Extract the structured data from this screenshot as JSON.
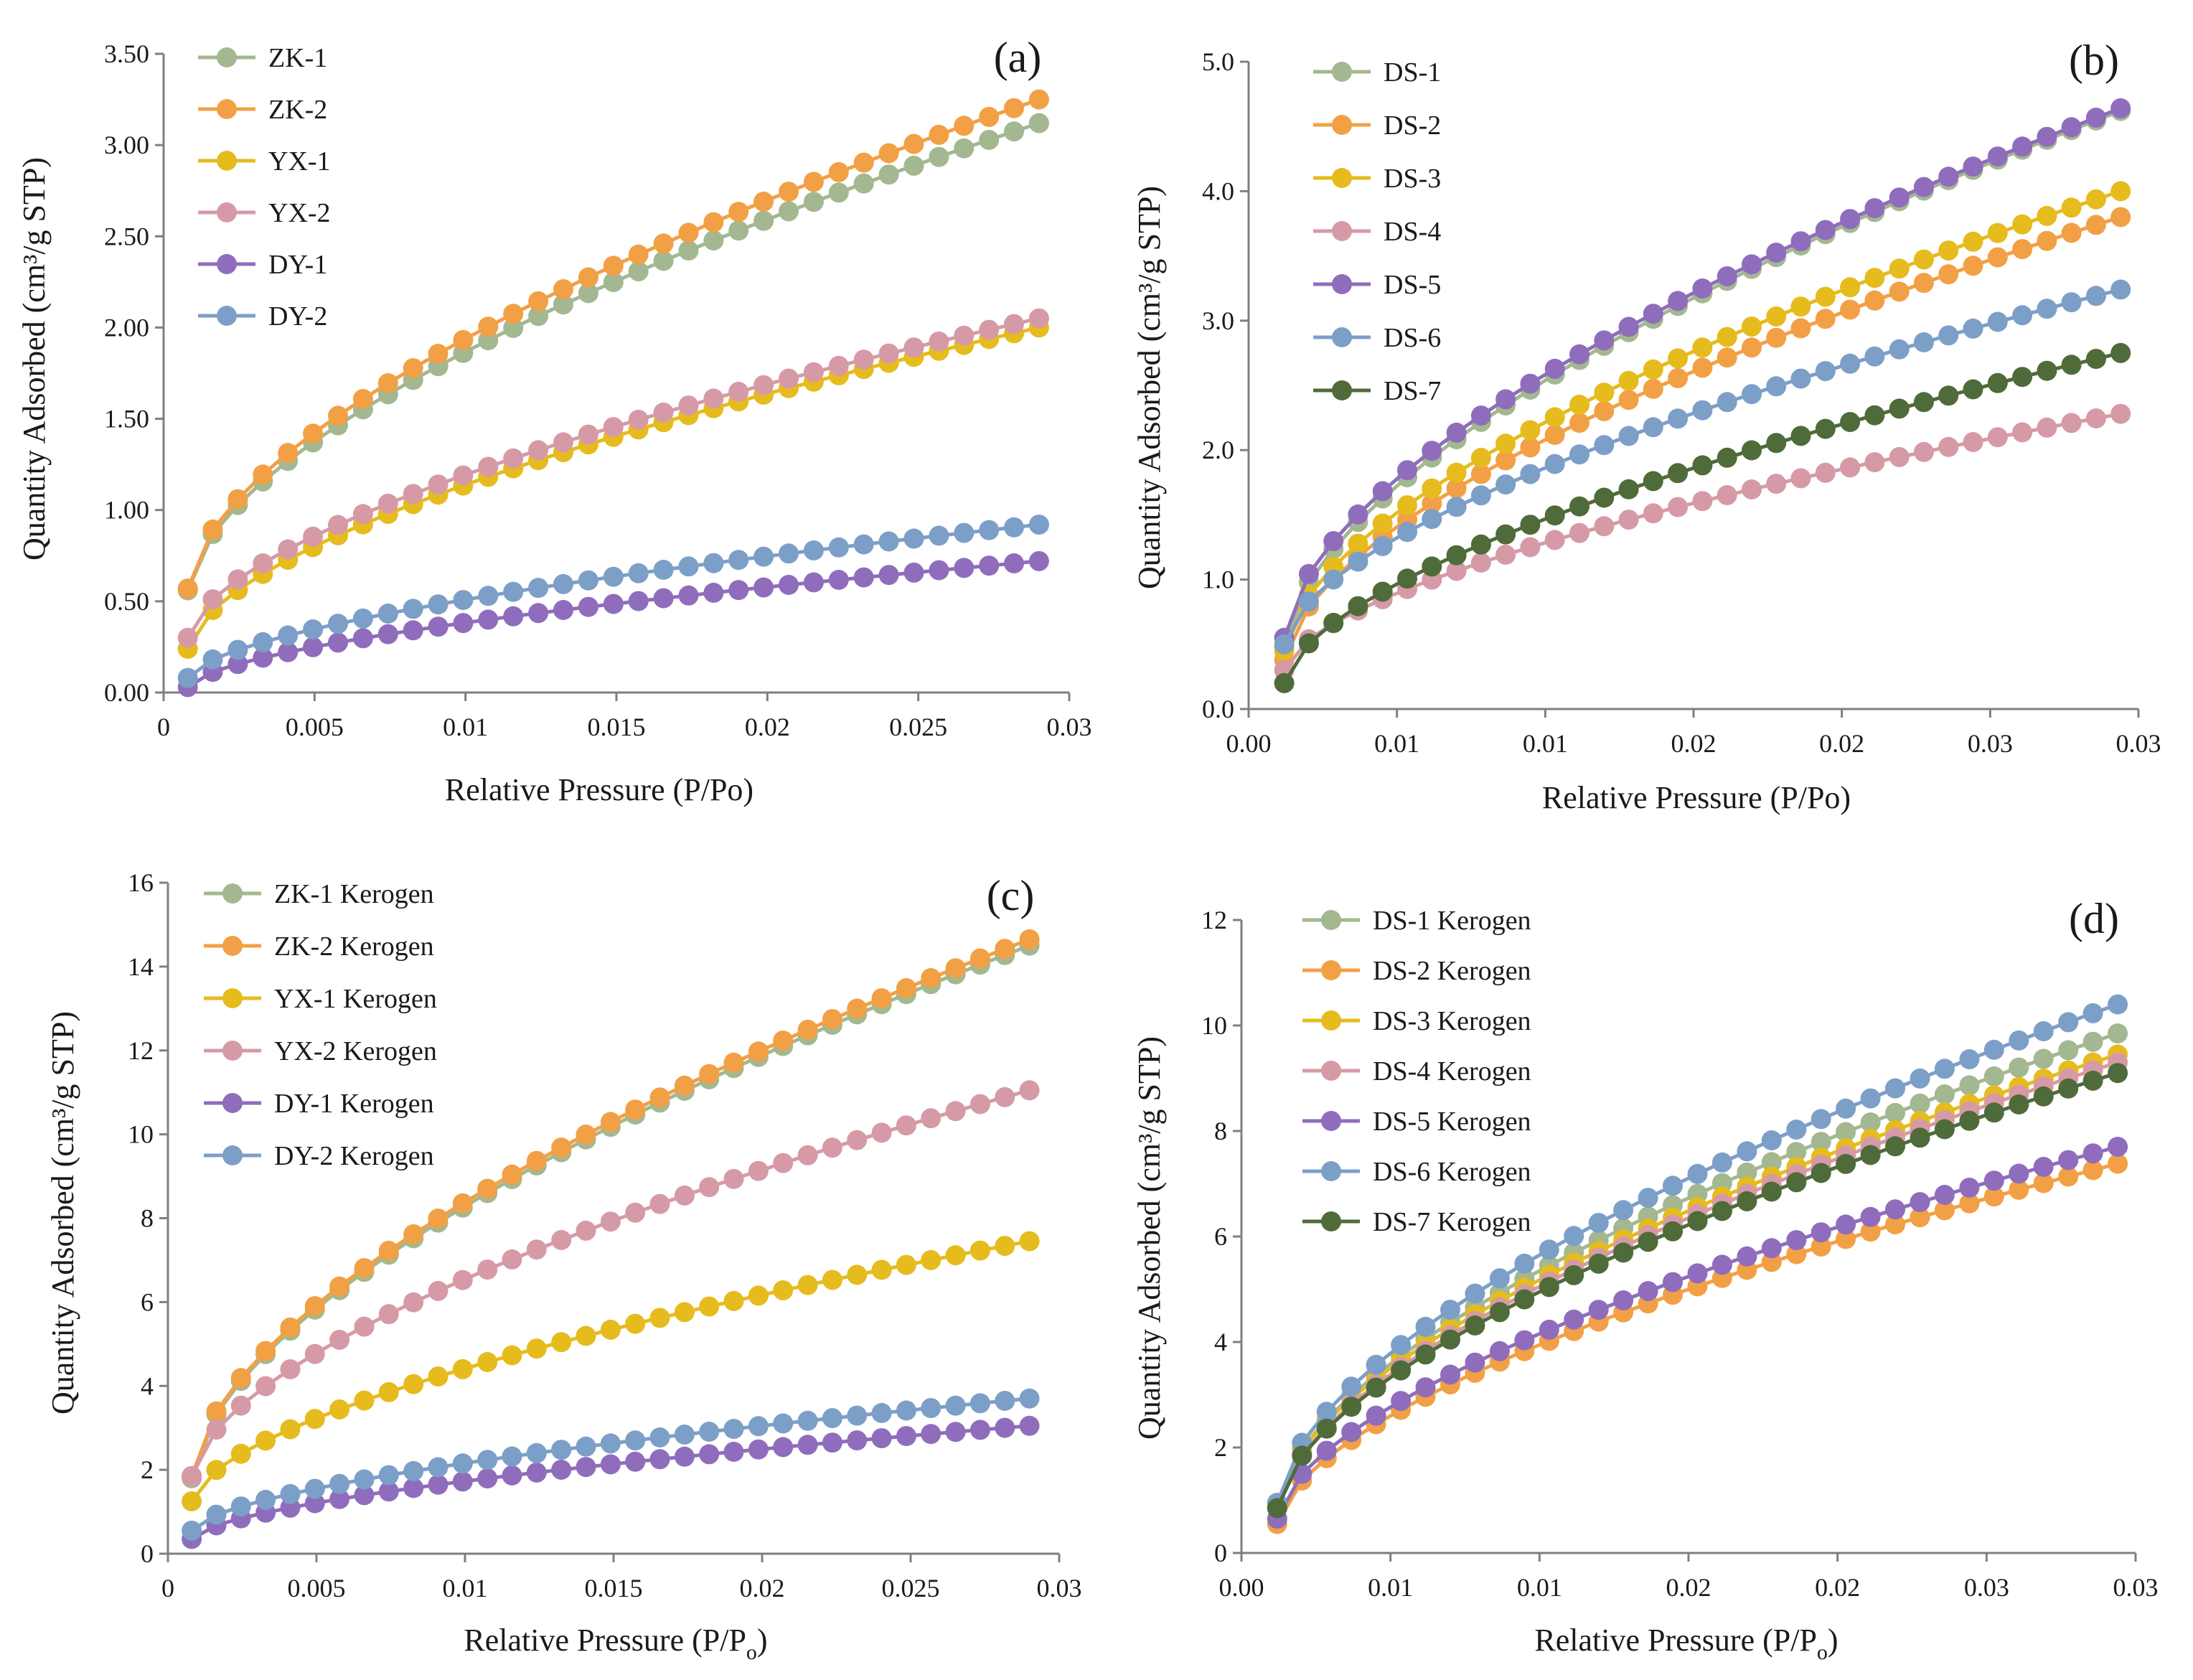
{
  "colors": {
    "green": "#a3b890",
    "orange": "#f2a045",
    "yellow": "#e6bb1e",
    "pink": "#d69aa6",
    "purple": "#8f6dbc",
    "blue": "#7c9fc8",
    "darkgreen": "#4f6b3a",
    "axis": "#7f7f7f"
  },
  "chart_data": [
    {
      "id": "a",
      "type": "line",
      "panel_label": "(a)",
      "xlabel": "Relative Pressure (P/Po)",
      "ylabel": "Quantity Adsorbed (cm³/g STP)",
      "xlim": [
        0,
        0.03
      ],
      "ylim": [
        0,
        3.5
      ],
      "x_tick_labels": [
        "0",
        "0.005",
        "0.01",
        "0.015",
        "0.02",
        "0.025",
        "0.03"
      ],
      "y_tick_labels": [
        "0.00",
        "0.50",
        "1.00",
        "1.50",
        "2.00",
        "2.50",
        "3.00",
        "3.50"
      ],
      "x_start": 0.0008,
      "x_end": 0.029,
      "points": 35,
      "series": [
        {
          "name": "ZK-1",
          "color_key": "green",
          "y0": 0.56,
          "y1": 3.12
        },
        {
          "name": "ZK-2",
          "color_key": "orange",
          "y0": 0.57,
          "y1": 3.25
        },
        {
          "name": "YX-1",
          "color_key": "yellow",
          "y0": 0.24,
          "y1": 2.0
        },
        {
          "name": "YX-2",
          "color_key": "pink",
          "y0": 0.3,
          "y1": 2.05
        },
        {
          "name": "DY-1",
          "color_key": "purple",
          "y0": 0.03,
          "y1": 0.72
        },
        {
          "name": "DY-2",
          "color_key": "blue",
          "y0": 0.08,
          "y1": 0.92
        }
      ]
    },
    {
      "id": "b",
      "type": "line",
      "panel_label": "(b)",
      "xlabel": "Relative Pressure (P/Po)",
      "ylabel": "Quantity Adsorbed (cm³/g STP)",
      "xlim": [
        0,
        0.03
      ],
      "ylim": [
        0,
        5.0
      ],
      "x_tick_labels": [
        "0.00",
        "0.01",
        "0.01",
        "0.02",
        "0.02",
        "0.03",
        "0.03"
      ],
      "y_tick_labels": [
        "0.0",
        "1.0",
        "2.0",
        "3.0",
        "4.0",
        "5.0"
      ],
      "x_start": 0.0012,
      "x_end": 0.0294,
      "points": 35,
      "series": [
        {
          "name": "DS-1",
          "color_key": "green",
          "y0": 0.48,
          "y1": 4.62
        },
        {
          "name": "DS-2",
          "color_key": "orange",
          "y0": 0.38,
          "y1": 3.8
        },
        {
          "name": "DS-3",
          "color_key": "yellow",
          "y0": 0.45,
          "y1": 4.0
        },
        {
          "name": "DS-4",
          "color_key": "pink",
          "y0": 0.3,
          "y1": 2.28
        },
        {
          "name": "DS-5",
          "color_key": "purple",
          "y0": 0.55,
          "y1": 4.64
        },
        {
          "name": "DS-6",
          "color_key": "blue",
          "y0": 0.5,
          "y1": 3.24
        },
        {
          "name": "DS-7",
          "color_key": "darkgreen",
          "y0": 0.2,
          "y1": 2.75
        }
      ]
    },
    {
      "id": "c",
      "type": "line",
      "panel_label": "(c)",
      "xlabel": "Relative Pressure (P/P",
      "xlabel_sub": "o",
      "xlabel_end": ")",
      "ylabel": "Quantity Adsorbed (cm³/g STP)",
      "xlim": [
        0,
        0.03
      ],
      "ylim": [
        0,
        16
      ],
      "x_tick_labels": [
        "0",
        "0.005",
        "0.01",
        "0.015",
        "0.02",
        "0.025",
        "0.03"
      ],
      "y_tick_labels": [
        "0",
        "2",
        "4",
        "6",
        "8",
        "10",
        "12",
        "14",
        "16"
      ],
      "x_start": 0.0008,
      "x_end": 0.029,
      "points": 35,
      "series": [
        {
          "name": "ZK-1 Kerogen",
          "color_key": "green",
          "y0": 1.8,
          "y1": 14.5
        },
        {
          "name": "ZK-2 Kerogen",
          "color_key": "orange",
          "y0": 1.85,
          "y1": 14.65
        },
        {
          "name": "YX-1 Kerogen",
          "color_key": "yellow",
          "y0": 1.25,
          "y1": 7.45
        },
        {
          "name": "YX-2 Kerogen",
          "color_key": "pink",
          "y0": 1.85,
          "y1": 11.05
        },
        {
          "name": "DY-1 Kerogen",
          "color_key": "purple",
          "y0": 0.35,
          "y1": 3.05
        },
        {
          "name": "DY-2 Kerogen",
          "color_key": "blue",
          "y0": 0.55,
          "y1": 3.7
        }
      ]
    },
    {
      "id": "d",
      "type": "line",
      "panel_label": "(d)",
      "xlabel": "Relative Pressure (P/P",
      "xlabel_sub": "o",
      "xlabel_end": ")",
      "ylabel": "Quantity Adsorbed (cm³/g STP)",
      "xlim": [
        0,
        0.03
      ],
      "ylim": [
        0,
        12
      ],
      "x_tick_labels": [
        "0.00",
        "0.01",
        "0.01",
        "0.02",
        "0.02",
        "0.03",
        "0.03"
      ],
      "y_tick_labels": [
        "0",
        "2",
        "4",
        "6",
        "8",
        "10",
        "12"
      ],
      "x_start": 0.0012,
      "x_end": 0.0294,
      "points": 35,
      "series": [
        {
          "name": "DS-1  Kerogen",
          "color_key": "green",
          "y0": 0.9,
          "y1": 9.85
        },
        {
          "name": "DS-2  Kerogen",
          "color_key": "orange",
          "y0": 0.55,
          "y1": 7.38
        },
        {
          "name": "DS-3  Kerogen",
          "color_key": "yellow",
          "y0": 0.95,
          "y1": 9.45
        },
        {
          "name": "DS-4  Kerogen",
          "color_key": "pink",
          "y0": 0.85,
          "y1": 9.3
        },
        {
          "name": "DS-5  Kerogen",
          "color_key": "purple",
          "y0": 0.65,
          "y1": 7.7
        },
        {
          "name": "DS-6  Kerogen",
          "color_key": "blue",
          "y0": 0.95,
          "y1": 10.4
        },
        {
          "name": "DS-7  Kerogen",
          "color_key": "darkgreen",
          "y0": 0.85,
          "y1": 9.1
        }
      ]
    }
  ]
}
